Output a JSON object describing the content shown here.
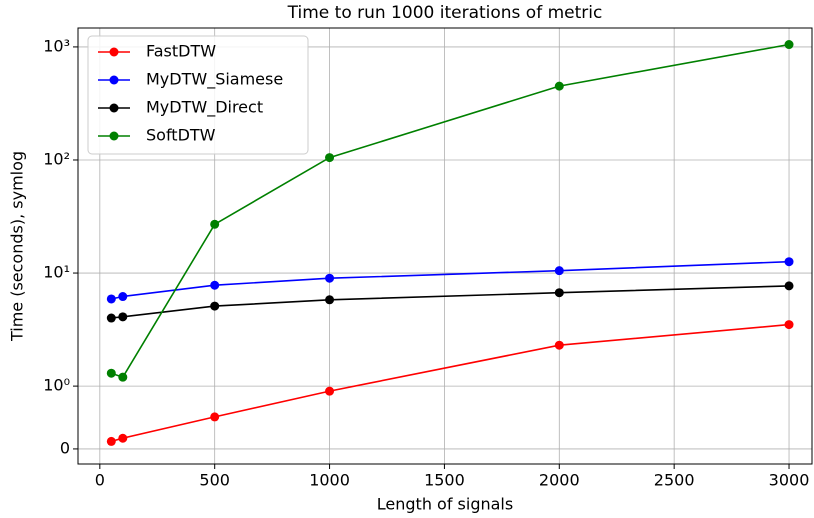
{
  "chart_data": {
    "type": "line",
    "title": "Time to run 1000 iterations of metric",
    "x_label": "Length of signals",
    "y_label": "Time (seconds), symlog",
    "x": [
      50,
      100,
      500,
      1000,
      2000,
      3000
    ],
    "series": [
      {
        "name": "FastDTW",
        "color": "#ff0000",
        "values": [
          0.12,
          0.17,
          0.51,
          0.92,
          2.3,
          3.5
        ]
      },
      {
        "name": "MyDTW_Siamese",
        "color": "#0000ff",
        "values": [
          5.9,
          6.2,
          7.8,
          9.0,
          10.5,
          12.6
        ]
      },
      {
        "name": "MyDTW_Direct",
        "color": "#000000",
        "values": [
          4.0,
          4.1,
          5.1,
          5.8,
          6.7,
          7.7
        ]
      },
      {
        "name": "SoftDTW",
        "color": "#008000",
        "values": [
          1.3,
          1.2,
          27,
          105,
          450,
          1050
        ]
      }
    ],
    "xlim": [
      -95,
      3100
    ],
    "xticks": [
      0,
      500,
      1000,
      1500,
      2000,
      2500,
      3000
    ],
    "ylim": [
      -0.24,
      1470
    ],
    "yscale": "symlog",
    "yticks": [
      0,
      {
        "value": 1,
        "label": "10⁰"
      },
      {
        "value": 10,
        "label": "10¹"
      },
      {
        "value": 100,
        "label": "10²"
      },
      {
        "value": 1000,
        "label": "10³"
      }
    ],
    "grid": true,
    "legend": "upper left"
  }
}
